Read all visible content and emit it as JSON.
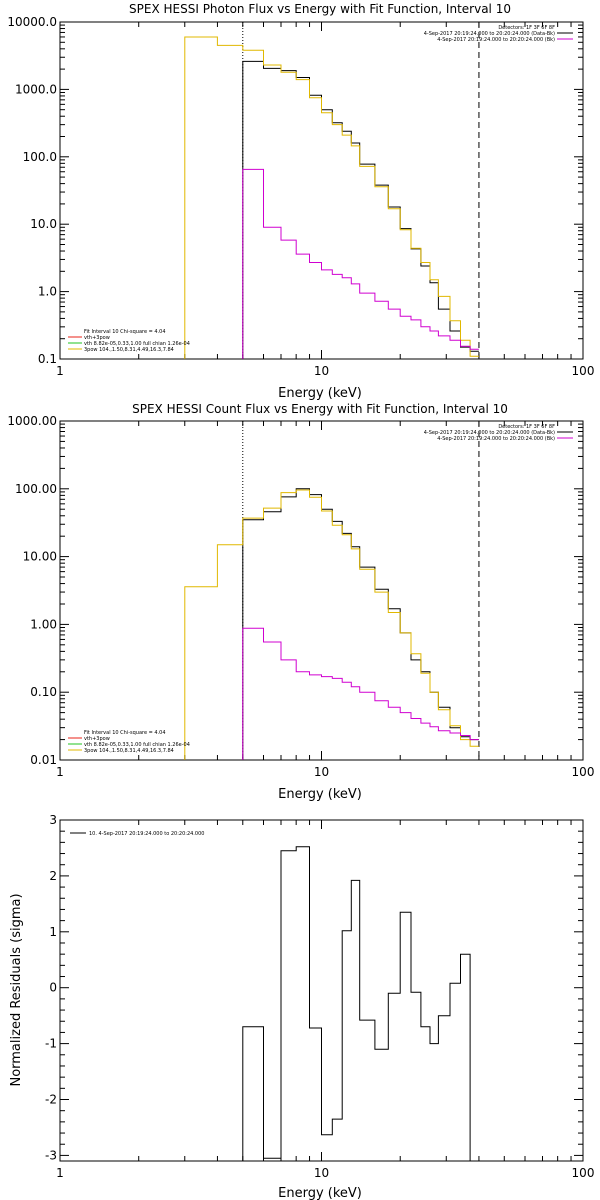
{
  "colors": {
    "background": "#ffffff",
    "data": "#000000",
    "total_fit": "#e0b800",
    "vth": "#e8231a",
    "thick": "#22c522",
    "bk": "#d000d0"
  },
  "chart_data": [
    {
      "type": "line",
      "title": "SPEX HESSI Photon Flux vs Energy with Fit Function, Interval 10",
      "xlabel": "Energy (keV)",
      "ylabel": "",
      "xlog": true,
      "ylog": true,
      "xlim": [
        1,
        100
      ],
      "ylim": [
        0.1,
        10000
      ],
      "xtick_labels": [
        "1",
        "10",
        "100"
      ],
      "ytick_labels": [
        "0.1",
        "1.0",
        "10.0",
        "100.0",
        "1000.0",
        "10000.0"
      ],
      "ytick_values": [
        0.1,
        1,
        10,
        100,
        1000,
        10000
      ],
      "edges": [
        5,
        6,
        7,
        8,
        9,
        10,
        11,
        12,
        13,
        14,
        16,
        18,
        20,
        22,
        24,
        26,
        28,
        31,
        34,
        37,
        40
      ],
      "series": [
        {
          "role": "data",
          "color_key": "data",
          "values": [
            2600,
            2050,
            1900,
            1500,
            820,
            500,
            320,
            240,
            160,
            78,
            38,
            18,
            8.6,
            4.3,
            2.4,
            1.35,
            0.55,
            0.26,
            0.15,
            0.13
          ]
        },
        {
          "role": "total_fit",
          "color_key": "total_fit",
          "pre_edges": [
            3,
            4,
            5
          ],
          "pre_values": [
            6000,
            4500
          ],
          "values": [
            3800,
            2300,
            1800,
            1400,
            750,
            450,
            300,
            210,
            145,
            72,
            36,
            17,
            8.3,
            4.4,
            2.7,
            1.5,
            0.85,
            0.37,
            0.19,
            0.11
          ]
        },
        {
          "role": "bk",
          "color_key": "bk",
          "values": [
            65,
            9,
            5.8,
            3.6,
            2.7,
            2.1,
            1.8,
            1.6,
            1.3,
            0.95,
            0.72,
            0.55,
            0.43,
            0.38,
            0.3,
            0.26,
            0.22,
            0.19,
            0.155,
            0.14
          ]
        }
      ],
      "vlines": [
        {
          "x": 5,
          "style": "dotted",
          "color_key": "data"
        },
        {
          "x": 40,
          "style": "dashed",
          "color_key": "data"
        }
      ],
      "legend_topright": [
        {
          "text": "Detectors: 1F 3F 6F 8F",
          "color_key": "data"
        },
        {
          "text": "4-Sep-2017 20:19:24.000 to 20:20:24.000 (Data-Bk)",
          "color_key": "data"
        },
        {
          "text": "4-Sep-2017 20:19:24.000 to 20:20:24.000 (Bk)",
          "color_key": "bk"
        }
      ],
      "legend_bottomleft": [
        {
          "text": "Fit Interval 10   Chi-square = 4.04",
          "color_key": null
        },
        {
          "text": "vth+3pow",
          "color_key": "vth"
        },
        {
          "text": "vth 8.82e-05,0.33,1.00   full chian 1.26e-04",
          "color_key": "thick"
        },
        {
          "text": "3pow 104.,1.50,8.31,4.49,16.3,7.84",
          "color_key": "total_fit"
        }
      ]
    },
    {
      "type": "line",
      "title": "SPEX HESSI Count Flux vs Energy with Fit Function, Interval 10",
      "xlabel": "Energy (keV)",
      "ylabel": "",
      "xlog": true,
      "ylog": true,
      "xlim": [
        1,
        100
      ],
      "ylim": [
        0.01,
        1000
      ],
      "xtick_labels": [
        "1",
        "10",
        "100"
      ],
      "ytick_labels": [
        "0.01",
        "0.10",
        "1.00",
        "10.00",
        "100.00",
        "1000.00"
      ],
      "ytick_values": [
        0.01,
        0.1,
        1,
        10,
        100,
        1000
      ],
      "edges": [
        5,
        6,
        7,
        8,
        9,
        10,
        11,
        12,
        13,
        14,
        16,
        18,
        20,
        22,
        24,
        26,
        28,
        31,
        34,
        37,
        40
      ],
      "series": [
        {
          "role": "data",
          "color_key": "data",
          "values": [
            35,
            46,
            76,
            100,
            82,
            50,
            33,
            22,
            14,
            7,
            3.3,
            1.7,
            0.75,
            0.3,
            0.2,
            0.1,
            0.06,
            0.03,
            0.022,
            0.02
          ]
        },
        {
          "role": "total_fit",
          "color_key": "total_fit",
          "pre_edges": [
            3,
            4,
            5
          ],
          "pre_values": [
            3.6,
            15
          ],
          "values": [
            37,
            52,
            88,
            96,
            75,
            47,
            29,
            21,
            13,
            6.5,
            3,
            1.5,
            0.75,
            0.37,
            0.19,
            0.1,
            0.055,
            0.032,
            0.02,
            0.016
          ]
        },
        {
          "role": "bk",
          "color_key": "bk",
          "values": [
            0.88,
            0.55,
            0.3,
            0.2,
            0.18,
            0.17,
            0.16,
            0.14,
            0.12,
            0.1,
            0.075,
            0.06,
            0.05,
            0.041,
            0.035,
            0.031,
            0.027,
            0.025,
            0.023,
            0.02
          ]
        }
      ],
      "vlines": [
        {
          "x": 5,
          "style": "dotted",
          "color_key": "data"
        },
        {
          "x": 40,
          "style": "dashed",
          "color_key": "data"
        }
      ],
      "legend_topright": [
        {
          "text": "Detectors: 1F 3F 6F 8F",
          "color_key": "data"
        },
        {
          "text": "4-Sep-2017 20:19:24.000 to 20:20:24.000 (Data-Bk)",
          "color_key": "data"
        },
        {
          "text": "4-Sep-2017 20:19:24.000 to 20:20:24.000 (Bk)",
          "color_key": "bk"
        }
      ],
      "legend_bottomleft": [
        {
          "text": "Fit Interval 10   Chi-square = 4.04",
          "color_key": null
        },
        {
          "text": "vth+3pow",
          "color_key": "vth"
        },
        {
          "text": "vth 8.82e-05,0.33,1.00   full chian 1.26e-04",
          "color_key": "thick"
        },
        {
          "text": "3pow 104.,1.50,8.31,4.49,16.3,7.84",
          "color_key": "total_fit"
        }
      ]
    },
    {
      "type": "line",
      "title": "",
      "xlabel": "Energy (keV)",
      "ylabel": "Normalized Residuals (sigma)",
      "xlog": true,
      "ylog": false,
      "xlim": [
        1,
        100
      ],
      "ylim": [
        -3.1,
        3.0
      ],
      "xtick_labels": [
        "1",
        "10",
        "100"
      ],
      "ytick_labels": [
        "-3",
        "-2",
        "-1",
        "0",
        "1",
        "2",
        "3"
      ],
      "ytick_values": [
        -3,
        -2,
        -1,
        0,
        1,
        2,
        3
      ],
      "edges": [
        5,
        6,
        7,
        8,
        9,
        10,
        11,
        12,
        13,
        14,
        16,
        18,
        20,
        22,
        24,
        26,
        28,
        31,
        34,
        37,
        40
      ],
      "series": [
        {
          "role": "residual",
          "color_key": "data",
          "values": [
            -0.7,
            -3.05,
            2.45,
            2.52,
            -0.72,
            -2.63,
            -2.35,
            1.02,
            1.92,
            -0.58,
            -1.1,
            -0.1,
            1.35,
            -0.08,
            -0.7,
            -1.0,
            -0.5,
            0.08,
            0.6,
            -3.1
          ]
        }
      ],
      "legend_topleft": [
        {
          "text": "10.  4-Sep-2017 20:19:24.000 to 20:20:24.000",
          "color_key": "data"
        }
      ]
    }
  ]
}
